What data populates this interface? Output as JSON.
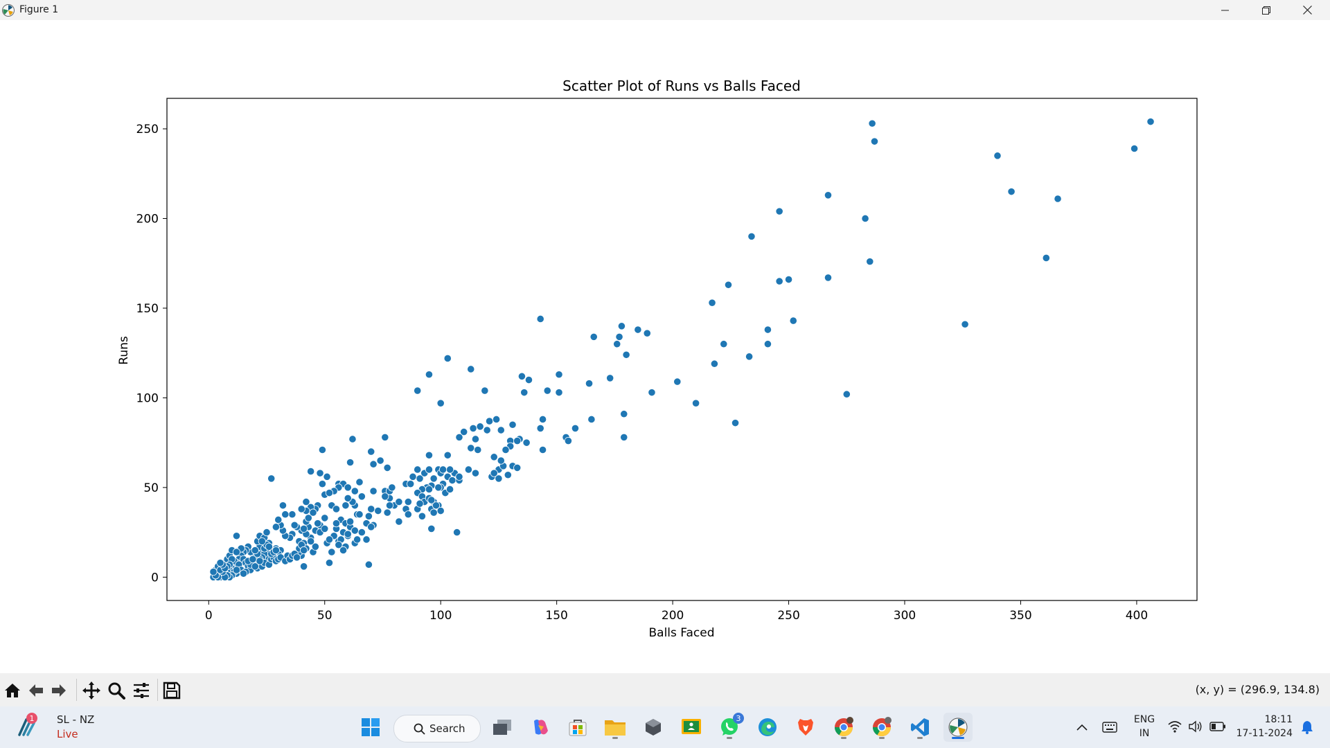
{
  "window": {
    "title": "Figure 1"
  },
  "toolbar": {
    "coords_text": "(x, y) = (296.9, 134.8)",
    "buttons": [
      "home-icon",
      "back-icon",
      "forward-icon",
      "pan-icon",
      "zoom-icon",
      "configure-subplots-icon",
      "save-icon"
    ]
  },
  "taskbar": {
    "news_title": "SL - NZ",
    "news_subtitle": "Live",
    "news_badge": "1",
    "search_label": "Search",
    "whatsapp_badge": "3",
    "lang_line1": "ENG",
    "lang_line2": "IN",
    "time": "18:11",
    "date": "17-11-2024",
    "accent_color": "#1a6fe0"
  },
  "chart_data": {
    "type": "scatter",
    "title": "Scatter Plot of Runs vs Balls Faced",
    "xlabel": "Balls Faced",
    "ylabel": "Runs",
    "xlim": [
      -18,
      426
    ],
    "ylim": [
      -13,
      267
    ],
    "xticks": [
      0,
      50,
      100,
      150,
      200,
      250,
      300,
      350,
      400
    ],
    "yticks": [
      0,
      50,
      100,
      150,
      200,
      250
    ],
    "grid": false,
    "marker_color": "#1f77b4",
    "points": [
      [
        406,
        254
      ],
      [
        286,
        253
      ],
      [
        399,
        239
      ],
      [
        287,
        243
      ],
      [
        340,
        235
      ],
      [
        346,
        215
      ],
      [
        366,
        211
      ],
      [
        267,
        213
      ],
      [
        246,
        204
      ],
      [
        283,
        200
      ],
      [
        234,
        190
      ],
      [
        361,
        178
      ],
      [
        285,
        176
      ],
      [
        250,
        166
      ],
      [
        246,
        165
      ],
      [
        267,
        167
      ],
      [
        224,
        163
      ],
      [
        217,
        153
      ],
      [
        252,
        143
      ],
      [
        326,
        141
      ],
      [
        143,
        144
      ],
      [
        178,
        140
      ],
      [
        185,
        138
      ],
      [
        241,
        138
      ],
      [
        189,
        136
      ],
      [
        166,
        134
      ],
      [
        177,
        134
      ],
      [
        176,
        130
      ],
      [
        222,
        130
      ],
      [
        241,
        130
      ],
      [
        180,
        124
      ],
      [
        233,
        123
      ],
      [
        103,
        122
      ],
      [
        218,
        119
      ],
      [
        113,
        116
      ],
      [
        135,
        112
      ],
      [
        95,
        113
      ],
      [
        151,
        113
      ],
      [
        173,
        111
      ],
      [
        138,
        110
      ],
      [
        164,
        108
      ],
      [
        202,
        109
      ],
      [
        90,
        104
      ],
      [
        119,
        104
      ],
      [
        146,
        104
      ],
      [
        151,
        103
      ],
      [
        136,
        103
      ],
      [
        191,
        103
      ],
      [
        275,
        102
      ],
      [
        100,
        97
      ],
      [
        210,
        97
      ],
      [
        179,
        91
      ],
      [
        144,
        88
      ],
      [
        165,
        88
      ],
      [
        227,
        86
      ],
      [
        121,
        87
      ],
      [
        124,
        88
      ],
      [
        131,
        85
      ],
      [
        114,
        83
      ],
      [
        126,
        82
      ],
      [
        117,
        84
      ],
      [
        143,
        83
      ],
      [
        158,
        83
      ],
      [
        130,
        76
      ],
      [
        137,
        75
      ],
      [
        134,
        77
      ],
      [
        110,
        81
      ],
      [
        120,
        82
      ],
      [
        108,
        78
      ],
      [
        115,
        77
      ],
      [
        154,
        78
      ],
      [
        155,
        76
      ],
      [
        179,
        78
      ],
      [
        144,
        71
      ],
      [
        113,
        72
      ],
      [
        116,
        71
      ],
      [
        123,
        67
      ],
      [
        103,
        68
      ],
      [
        130,
        73
      ],
      [
        76,
        78
      ],
      [
        62,
        77
      ],
      [
        49,
        71
      ],
      [
        70,
        70
      ],
      [
        74,
        65
      ],
      [
        61,
        64
      ],
      [
        71,
        63
      ],
      [
        77,
        61
      ],
      [
        44,
        59
      ],
      [
        48,
        58
      ],
      [
        51,
        56
      ],
      [
        49,
        52
      ],
      [
        50,
        46
      ],
      [
        56,
        52
      ],
      [
        58,
        52
      ],
      [
        60,
        50
      ],
      [
        65,
        53
      ],
      [
        66,
        45
      ],
      [
        63,
        48
      ],
      [
        71,
        48
      ],
      [
        76,
        48
      ],
      [
        78,
        44
      ],
      [
        78,
        48
      ],
      [
        79,
        50
      ],
      [
        85,
        52
      ],
      [
        87,
        52
      ],
      [
        88,
        56
      ],
      [
        91,
        55
      ],
      [
        90,
        60
      ],
      [
        93,
        58
      ],
      [
        95,
        68
      ],
      [
        95,
        60
      ],
      [
        99,
        60
      ],
      [
        106,
        58
      ],
      [
        103,
        56
      ],
      [
        105,
        54
      ],
      [
        108,
        54
      ],
      [
        101,
        52
      ],
      [
        100,
        50
      ],
      [
        99,
        50
      ],
      [
        96,
        51
      ],
      [
        94,
        50
      ],
      [
        92,
        49
      ],
      [
        90,
        47
      ],
      [
        92,
        45
      ],
      [
        93,
        42
      ],
      [
        95,
        44
      ],
      [
        97,
        42
      ],
      [
        99,
        40
      ],
      [
        102,
        47
      ],
      [
        104,
        49
      ],
      [
        96,
        38
      ],
      [
        96,
        27
      ],
      [
        98,
        40
      ],
      [
        90,
        38
      ],
      [
        92,
        34
      ],
      [
        86,
        42
      ],
      [
        85,
        38
      ],
      [
        80,
        40
      ],
      [
        78,
        40
      ],
      [
        77,
        36
      ],
      [
        73,
        37
      ],
      [
        70,
        38
      ],
      [
        69,
        34
      ],
      [
        71,
        29
      ],
      [
        68,
        30
      ],
      [
        64,
        35
      ],
      [
        63,
        40
      ],
      [
        62,
        42
      ],
      [
        60,
        44
      ],
      [
        59,
        40
      ],
      [
        56,
        50
      ],
      [
        54,
        48
      ],
      [
        52,
        47
      ],
      [
        47,
        40
      ],
      [
        46,
        38
      ],
      [
        44,
        39
      ],
      [
        42,
        37
      ],
      [
        40,
        38
      ],
      [
        42,
        42
      ],
      [
        43,
        28
      ],
      [
        40,
        26
      ],
      [
        38,
        28
      ],
      [
        36,
        24
      ],
      [
        39,
        20
      ],
      [
        41,
        19
      ],
      [
        42,
        16
      ],
      [
        44,
        22
      ],
      [
        46,
        26
      ],
      [
        48,
        29
      ],
      [
        50,
        33
      ],
      [
        53,
        40
      ],
      [
        55,
        38
      ],
      [
        57,
        32
      ],
      [
        59,
        30
      ],
      [
        61,
        28
      ],
      [
        63,
        26
      ],
      [
        60,
        23
      ],
      [
        58,
        25
      ],
      [
        56,
        20
      ],
      [
        55,
        27
      ],
      [
        57,
        21
      ],
      [
        59,
        17
      ],
      [
        63,
        19
      ],
      [
        64,
        21
      ],
      [
        66,
        25
      ],
      [
        68,
        21
      ],
      [
        70,
        28
      ],
      [
        65,
        35
      ],
      [
        55,
        30
      ],
      [
        51,
        19
      ],
      [
        52,
        8
      ],
      [
        69,
        7
      ],
      [
        82,
        31
      ],
      [
        86,
        35
      ],
      [
        107,
        25
      ],
      [
        100,
        37
      ],
      [
        82,
        42
      ],
      [
        76,
        45
      ],
      [
        91,
        41
      ],
      [
        96,
        43
      ],
      [
        95,
        49
      ],
      [
        97,
        55
      ],
      [
        104,
        60
      ],
      [
        108,
        56
      ],
      [
        115,
        58
      ],
      [
        112,
        60
      ],
      [
        97,
        36
      ],
      [
        41,
        6
      ],
      [
        40,
        12
      ],
      [
        39,
        14
      ],
      [
        45,
        14
      ],
      [
        46,
        17
      ],
      [
        44,
        20
      ],
      [
        42,
        24
      ],
      [
        41,
        27
      ],
      [
        37,
        29
      ],
      [
        36,
        35
      ],
      [
        35,
        22
      ],
      [
        33,
        23
      ],
      [
        32,
        26
      ],
      [
        31,
        29
      ],
      [
        30,
        32
      ],
      [
        29,
        28
      ],
      [
        27,
        55
      ],
      [
        32,
        40
      ],
      [
        33,
        35
      ],
      [
        29,
        16
      ],
      [
        31,
        15
      ],
      [
        30,
        13
      ],
      [
        28,
        12
      ],
      [
        26,
        9
      ],
      [
        25,
        11
      ],
      [
        23,
        14
      ],
      [
        22,
        17
      ],
      [
        21,
        20
      ],
      [
        22,
        23
      ],
      [
        24,
        22
      ],
      [
        25,
        25
      ],
      [
        26,
        19
      ],
      [
        27,
        15
      ],
      [
        25,
        14
      ],
      [
        24,
        13
      ],
      [
        23,
        11
      ],
      [
        22,
        10
      ],
      [
        20,
        9
      ],
      [
        20,
        12
      ],
      [
        19,
        13
      ],
      [
        18,
        14
      ],
      [
        17,
        17
      ],
      [
        16,
        15
      ],
      [
        15,
        14
      ],
      [
        14,
        12
      ],
      [
        13,
        10
      ],
      [
        12,
        8
      ],
      [
        11,
        6
      ],
      [
        10,
        5
      ],
      [
        9,
        4
      ],
      [
        8,
        3
      ],
      [
        7,
        2
      ],
      [
        6,
        1
      ],
      [
        5,
        0
      ],
      [
        4,
        1
      ],
      [
        3,
        2
      ],
      [
        2,
        0
      ],
      [
        3,
        4
      ],
      [
        4,
        6
      ],
      [
        5,
        3
      ],
      [
        6,
        5
      ],
      [
        7,
        8
      ],
      [
        8,
        10
      ],
      [
        9,
        12
      ],
      [
        10,
        15
      ],
      [
        12,
        23
      ],
      [
        14,
        16
      ],
      [
        15,
        10
      ],
      [
        16,
        8
      ],
      [
        17,
        6
      ],
      [
        18,
        4
      ],
      [
        19,
        7
      ],
      [
        21,
        5
      ],
      [
        23,
        6
      ],
      [
        24,
        8
      ],
      [
        26,
        7
      ],
      [
        27,
        10
      ],
      [
        28,
        11
      ],
      [
        29,
        9
      ],
      [
        30,
        10
      ],
      [
        31,
        11
      ],
      [
        33,
        9
      ],
      [
        34,
        12
      ],
      [
        35,
        10
      ],
      [
        36,
        12
      ],
      [
        37,
        13
      ],
      [
        38,
        11
      ],
      [
        39,
        16
      ],
      [
        40,
        18
      ],
      [
        41,
        15
      ],
      [
        13,
        5
      ],
      [
        12,
        2
      ],
      [
        11,
        3
      ],
      [
        10,
        1
      ],
      [
        9,
        0
      ],
      [
        8,
        1
      ],
      [
        7,
        0
      ],
      [
        6,
        3
      ],
      [
        5,
        4
      ],
      [
        4,
        0
      ],
      [
        3,
        1
      ],
      [
        2,
        3
      ],
      [
        11,
        9
      ],
      [
        13,
        7
      ],
      [
        14,
        4
      ],
      [
        16,
        3
      ],
      [
        18,
        7
      ],
      [
        20,
        6
      ],
      [
        21,
        13
      ],
      [
        22,
        9
      ],
      [
        24,
        16
      ],
      [
        25,
        18
      ],
      [
        26,
        17
      ],
      [
        27,
        13
      ],
      [
        28,
        14
      ],
      [
        29,
        15
      ],
      [
        12,
        14
      ],
      [
        10,
        10
      ],
      [
        9,
        7
      ],
      [
        8,
        6
      ],
      [
        7,
        5
      ],
      [
        6,
        7
      ],
      [
        5,
        8
      ],
      [
        12,
        4
      ],
      [
        15,
        2
      ],
      [
        17,
        9
      ],
      [
        19,
        10
      ],
      [
        20,
        15
      ],
      [
        23,
        20
      ],
      [
        53,
        14
      ],
      [
        54,
        23
      ],
      [
        42,
        31
      ],
      [
        43,
        33
      ],
      [
        45,
        36
      ],
      [
        47,
        30
      ],
      [
        48,
        25
      ],
      [
        50,
        27
      ],
      [
        52,
        21
      ],
      [
        56,
        18
      ],
      [
        58,
        15
      ],
      [
        60,
        24
      ],
      [
        61,
        31
      ],
      [
        100,
        58
      ],
      [
        101,
        60
      ],
      [
        125,
        60
      ],
      [
        127,
        62
      ],
      [
        129,
        57
      ],
      [
        131,
        62
      ],
      [
        133,
        61
      ],
      [
        122,
        56
      ],
      [
        125,
        55
      ],
      [
        123,
        58
      ],
      [
        126,
        65
      ],
      [
        128,
        71
      ],
      [
        133,
        76
      ]
    ]
  }
}
